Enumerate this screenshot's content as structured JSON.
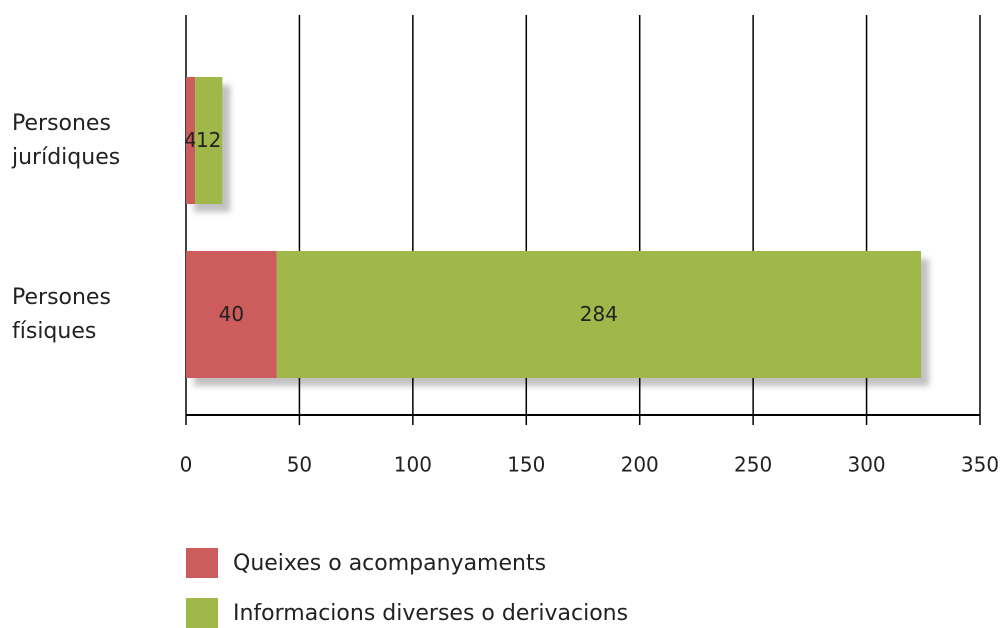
{
  "chart_data": {
    "type": "stacked_bar_horizontal",
    "categories": [
      "Persones jurídiques",
      "Persones físiques"
    ],
    "series": [
      {
        "name": "Queixes o acompanyaments",
        "color": "#cd5c5c",
        "values": [
          4,
          40
        ]
      },
      {
        "name": "Informacions diverses o derivacions",
        "color": "#a0b84a",
        "values": [
          12,
          284
        ]
      }
    ],
    "xlim": [
      0,
      350
    ],
    "xticks": [
      0,
      50,
      100,
      150,
      200,
      250,
      300,
      350
    ],
    "grid": true
  }
}
